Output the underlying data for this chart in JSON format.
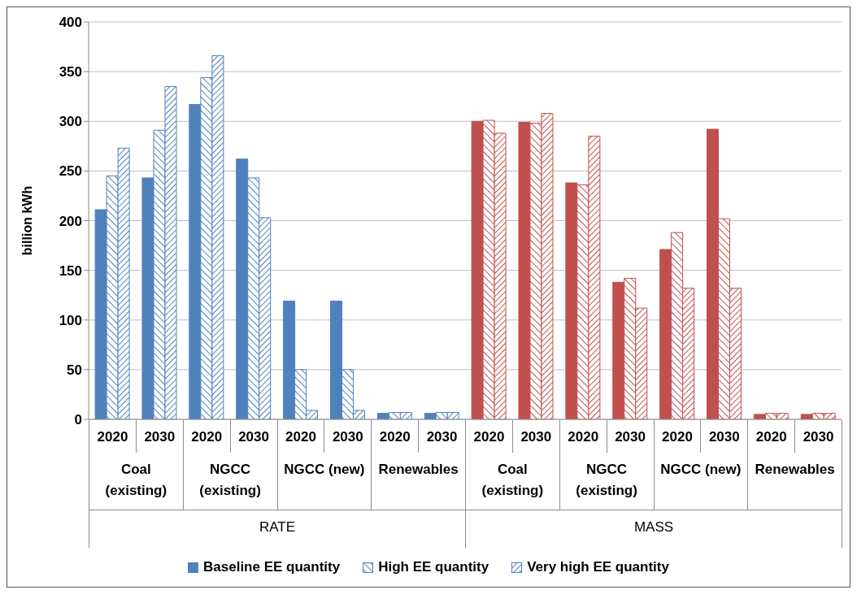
{
  "chart_data": {
    "type": "bar",
    "ylabel": "billion kWh",
    "categories": [
      "2020",
      "2030",
      "2020",
      "2030",
      "2020",
      "2030",
      "2020",
      "2030",
      "2020",
      "2030",
      "2020",
      "2030",
      "2020",
      "2030",
      "2020",
      "2030"
    ],
    "series": [
      {
        "name": "Baseline EE quantity",
        "color": "#4f81bd",
        "colors": [
          "#4f81bd",
          "#4f81bd",
          "#4f81bd",
          "#4f81bd",
          "#4f81bd",
          "#4f81bd",
          "#4f81bd",
          "#4f81bd",
          "#c0504d",
          "#c0504d",
          "#c0504d",
          "#c0504d",
          "#c0504d",
          "#c0504d",
          "#c0504d",
          "#c0504d"
        ],
        "values": [
          211,
          243,
          317,
          262,
          119,
          119,
          6,
          6,
          300,
          299,
          238,
          138,
          171,
          292,
          5,
          5
        ]
      },
      {
        "name": "High EE quantity",
        "color": "#4f81bd",
        "colors": [
          "#4f81bd",
          "#4f81bd",
          "#4f81bd",
          "#4f81bd",
          "#4f81bd",
          "#4f81bd",
          "#4f81bd",
          "#4f81bd",
          "#c0504d",
          "#c0504d",
          "#c0504d",
          "#c0504d",
          "#c0504d",
          "#c0504d",
          "#c0504d",
          "#c0504d"
        ],
        "values": [
          245,
          291,
          344,
          243,
          50,
          50,
          7,
          7,
          301,
          298,
          236,
          142,
          188,
          202,
          6,
          6
        ]
      },
      {
        "name": "Very high EE quantity",
        "color": "#4f81bd",
        "colors": [
          "#4f81bd",
          "#4f81bd",
          "#4f81bd",
          "#4f81bd",
          "#4f81bd",
          "#4f81bd",
          "#4f81bd",
          "#4f81bd",
          "#c0504d",
          "#c0504d",
          "#c0504d",
          "#c0504d",
          "#c0504d",
          "#c0504d",
          "#c0504d",
          "#c0504d"
        ],
        "values": [
          273,
          335,
          366,
          203,
          9,
          9,
          7,
          7,
          288,
          308,
          285,
          112,
          132,
          132,
          6,
          6
        ]
      }
    ],
    "annotations": [
      "Coal (existing)",
      "NGCC (existing)",
      "NGCC (new)",
      "Renewables",
      "Coal (existing)",
      "NGCC (existing)",
      "NGCC (new)",
      "Renewables",
      "RATE",
      "MASS"
    ],
    "ylim": [
      0,
      400
    ],
    "yticks": [
      0,
      50,
      100,
      150,
      200,
      250,
      300,
      350,
      400
    ],
    "grid": "y",
    "legend": "bottom"
  }
}
